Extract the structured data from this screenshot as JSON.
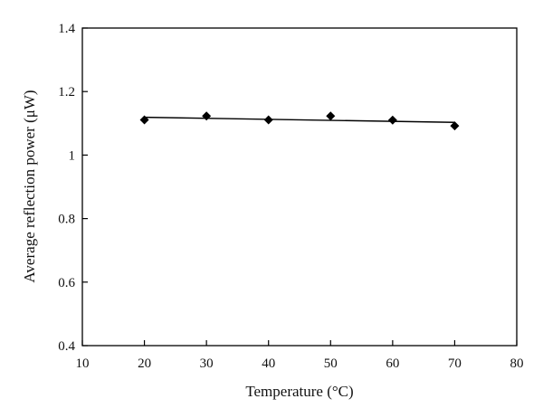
{
  "chart_data": {
    "type": "scatter",
    "title": "",
    "xlabel": "Temperature (°C)",
    "ylabel": "Average reflection power (μW)",
    "xlim": [
      10,
      80
    ],
    "ylim": [
      0.4,
      1.4
    ],
    "xticks": [
      10,
      20,
      30,
      40,
      50,
      60,
      70,
      80
    ],
    "yticks": [
      0.4,
      0.6,
      0.8,
      1.0,
      1.2,
      1.4
    ],
    "xtick_labels": [
      "10",
      "20",
      "30",
      "40",
      "50",
      "60",
      "70",
      "80"
    ],
    "ytick_labels": [
      "0.4",
      "0.6",
      "0.8",
      "1",
      "1.2",
      "1.4"
    ],
    "grid": false,
    "series": [
      {
        "marker": "diamond",
        "color": "#000000",
        "x": [
          20,
          30,
          40,
          50,
          60,
          70
        ],
        "y": [
          1.111,
          1.123,
          1.111,
          1.123,
          1.11,
          1.092
        ]
      }
    ],
    "trendline": {
      "type": "linear",
      "color": "#000000",
      "x": [
        20,
        70
      ],
      "y": [
        1.119,
        1.103
      ]
    }
  }
}
